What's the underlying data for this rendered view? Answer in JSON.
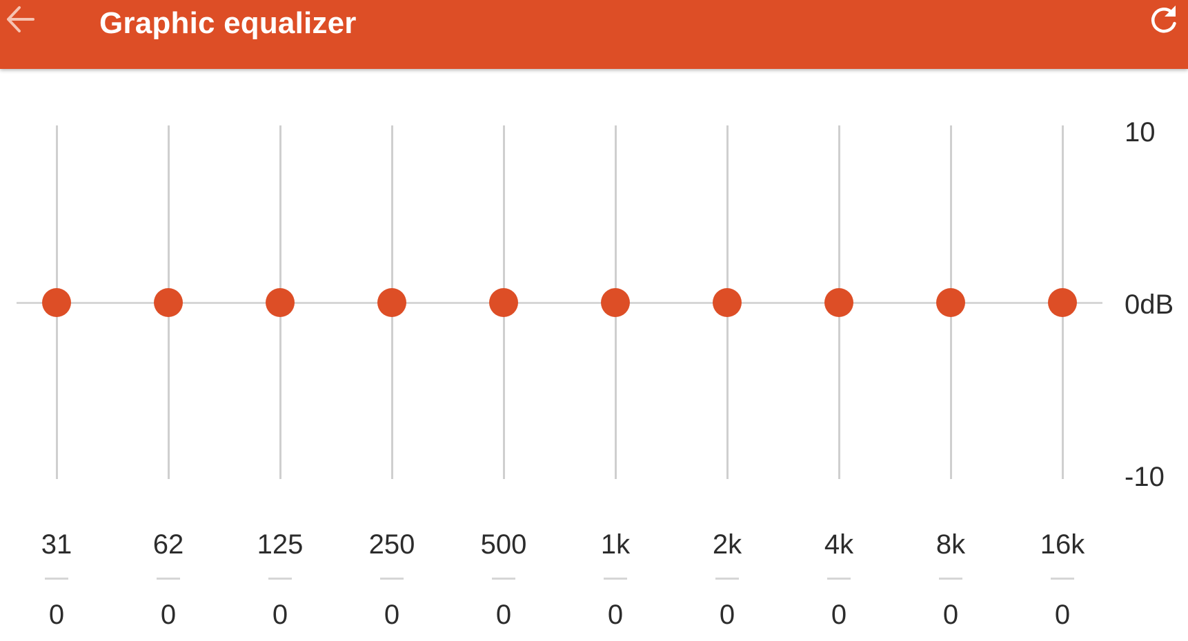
{
  "colors": {
    "accent": "#DD4E26",
    "toolbar_text": "#FFFFFF",
    "back_arrow": "#F6C3B2",
    "track": "#CFCFCF",
    "text": "#2C2C2C"
  },
  "toolbar": {
    "title": "Graphic equalizer",
    "back_icon": "arrow-left-icon",
    "reset_icon": "refresh-icon"
  },
  "scale": {
    "max_label": "10",
    "zero_label": "0dB",
    "min_label": "-10",
    "min": -10,
    "max": 10
  },
  "bands": [
    {
      "freq": "31",
      "value": "0",
      "gain": 0
    },
    {
      "freq": "62",
      "value": "0",
      "gain": 0
    },
    {
      "freq": "125",
      "value": "0",
      "gain": 0
    },
    {
      "freq": "250",
      "value": "0",
      "gain": 0
    },
    {
      "freq": "500",
      "value": "0",
      "gain": 0
    },
    {
      "freq": "1k",
      "value": "0",
      "gain": 0
    },
    {
      "freq": "2k",
      "value": "0",
      "gain": 0
    },
    {
      "freq": "4k",
      "value": "0",
      "gain": 0
    },
    {
      "freq": "8k",
      "value": "0",
      "gain": 0
    },
    {
      "freq": "16k",
      "value": "0",
      "gain": 0
    }
  ]
}
